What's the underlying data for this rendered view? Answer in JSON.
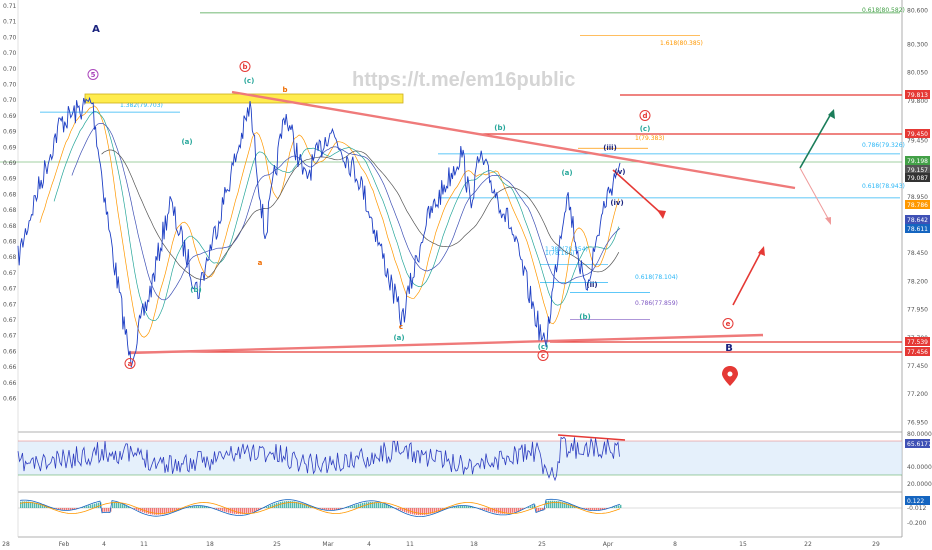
{
  "watermark": "https://t.me/em16public",
  "chart_data": {
    "type": "line",
    "title": "",
    "price_axis": {
      "left_ticks": [
        "0.71",
        "0.71",
        "0.70",
        "0.70",
        "0.70",
        "0.70",
        "0.70",
        "0.69",
        "0.69",
        "0.69",
        "0.69",
        "0.69",
        "0.68",
        "0.68",
        "0.68",
        "0.68",
        "0.68",
        "0.67",
        "0.67",
        "0.67",
        "0.67",
        "0.67",
        "0.66",
        "0.66",
        "0.66",
        "0.66"
      ],
      "right_ticks": [
        "80.600",
        "80.300",
        "80.050",
        "79.800",
        "79.450",
        "79.200",
        "78.950",
        "78.700",
        "78.450",
        "78.200",
        "77.950",
        "77.700",
        "77.450",
        "77.200",
        "76.950",
        "76.700"
      ],
      "ylim": [
        76.9,
        80.65
      ]
    },
    "time_axis": {
      "ticks": [
        "Feb",
        "4",
        "11",
        "18",
        "25",
        "Mar",
        "4",
        "11",
        "18",
        "25",
        "Apr",
        "8",
        "15",
        "22",
        "29"
      ],
      "right_label": "28"
    },
    "price_path": [
      {
        "x": "start",
        "y": 78.4
      },
      {
        "x": "",
        "y": 78.9
      },
      {
        "x": "",
        "y": 79.6
      },
      {
        "x": "Feb 4",
        "y": 79.8
      },
      {
        "x": "",
        "y": 78.6
      },
      {
        "x": "Feb 8",
        "y": 77.5
      },
      {
        "x": "",
        "y": 78.1
      },
      {
        "x": "",
        "y": 78.9
      },
      {
        "x": "Feb 13",
        "y": 78.1
      },
      {
        "x": "",
        "y": 78.8
      },
      {
        "x": "Feb 20",
        "y": 79.75
      },
      {
        "x": "",
        "y": 78.6
      },
      {
        "x": "Feb 25",
        "y": 79.7
      },
      {
        "x": "",
        "y": 79.1
      },
      {
        "x": "Mar 1",
        "y": 79.55
      },
      {
        "x": "",
        "y": 79.1
      },
      {
        "x": "Mar 11",
        "y": 77.85
      },
      {
        "x": "",
        "y": 78.7
      },
      {
        "x": "Mar 18",
        "y": 79.35
      },
      {
        "x": "",
        "y": 78.9
      },
      {
        "x": "Mar 22",
        "y": 79.3
      },
      {
        "x": "",
        "y": 78.7
      },
      {
        "x": "Mar 25",
        "y": 77.6
      },
      {
        "x": "",
        "y": 78.6
      },
      {
        "x": "Mar 27",
        "y": 79.0
      },
      {
        "x": "",
        "y": 78.1
      },
      {
        "x": "Mar 31",
        "y": 78.9
      },
      {
        "x": "Apr 2",
        "y": 79.25
      }
    ],
    "badges": [
      {
        "value": "79.813",
        "color": "#e53935"
      },
      {
        "value": "79.450",
        "color": "#e53935"
      },
      {
        "value": "79.198",
        "color": "#43a047"
      },
      {
        "value": "79.157",
        "color": "#555555"
      },
      {
        "value": "79.087",
        "color": "#333333"
      },
      {
        "value": "78.786",
        "color": "#ff9800"
      },
      {
        "value": "78.642",
        "color": "#3f51b5"
      },
      {
        "value": "78.611",
        "color": "#1565c0"
      },
      {
        "value": "77.539",
        "color": "#e53935"
      },
      {
        "value": "77.456",
        "color": "#e53935"
      }
    ],
    "fib_levels": [
      {
        "label": "0.618(80.582)",
        "value": 80.58,
        "color": "#43a047"
      },
      {
        "label": "1.618(80.385)",
        "value": 80.38,
        "color": "#ff9800"
      },
      {
        "label": "1.382(79.703)",
        "value": 79.7,
        "color": "#29b6f6"
      },
      {
        "label": "1(79.383)",
        "value": 79.38,
        "color": "#ff9800"
      },
      {
        "label": "0.786(79.326)",
        "value": 79.33,
        "color": "#29b6f6"
      },
      {
        "label": "0.618(78.943)",
        "value": 78.94,
        "color": "#29b6f6"
      },
      {
        "label": "1.382(78.354)",
        "value": 78.35,
        "color": "#29b6f6"
      },
      {
        "label": "1(78.186)",
        "value": 78.19,
        "color": "#29b6f6"
      },
      {
        "label": "0.618(78.104)",
        "value": 78.1,
        "color": "#29b6f6"
      },
      {
        "label": "0.786(77.859)",
        "value": 77.86,
        "color": "#7e57c2"
      }
    ],
    "wave_labels": [
      {
        "text": "A",
        "color": "#1a237e",
        "circled": false
      },
      {
        "text": "5",
        "color": "#ab47bc",
        "circled": true
      },
      {
        "text": "b",
        "color": "#e53935",
        "circled": true
      },
      {
        "text": "(c)",
        "color": "#26a69a",
        "circled": false
      },
      {
        "text": "b",
        "color": "#ef6c00",
        "circled": false
      },
      {
        "text": "(a)",
        "color": "#26a69a",
        "circled": false
      },
      {
        "text": "(b)",
        "color": "#26a69a",
        "circled": false
      },
      {
        "text": "a",
        "color": "#e53935",
        "circled": true
      },
      {
        "text": "a",
        "color": "#ef6c00",
        "circled": false
      },
      {
        "text": "c",
        "color": "#ef6c00",
        "circled": false
      },
      {
        "text": "(a)",
        "color": "#26a69a",
        "circled": false
      },
      {
        "text": "(b)",
        "color": "#26a69a",
        "circled": false
      },
      {
        "text": "(a)",
        "color": "#26a69a",
        "circled": false
      },
      {
        "text": "(c)",
        "color": "#26a69a",
        "circled": false
      },
      {
        "text": "c",
        "color": "#e53935",
        "circled": true
      },
      {
        "text": "(b)",
        "color": "#26a69a",
        "circled": false
      },
      {
        "text": "(ii)",
        "color": "#1a237e",
        "circled": false
      },
      {
        "text": "(iii)",
        "color": "#1a237e",
        "circled": false
      },
      {
        "text": "(iv)",
        "color": "#1a237e",
        "circled": false
      },
      {
        "text": "(v)",
        "color": "#1a237e",
        "circled": false
      },
      {
        "text": "(c)",
        "color": "#26a69a",
        "circled": false
      },
      {
        "text": "d",
        "color": "#e53935",
        "circled": true
      },
      {
        "text": "e",
        "color": "#e53935",
        "circled": true
      },
      {
        "text": "B",
        "color": "#1a237e",
        "circled": false
      }
    ],
    "rsi": {
      "value": "65.6177",
      "upper": "80.0000",
      "mid": "40.0000",
      "lower": "20.0000",
      "color": "#3f51b5"
    },
    "macd": {
      "value": "0.122",
      "neg_value": "-0.012",
      "tick": "-0.200"
    }
  }
}
